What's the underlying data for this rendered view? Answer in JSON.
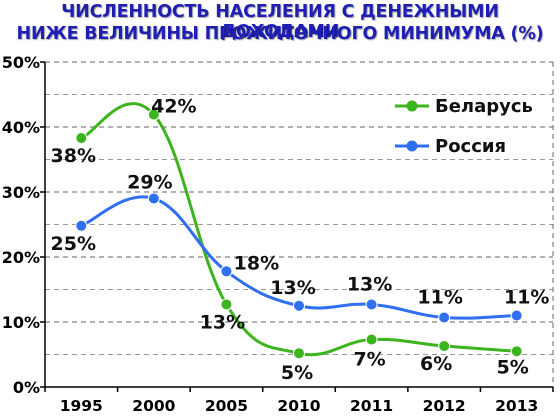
{
  "title": {
    "line1": "ЧИСЛЕННОСТЬ НАСЕЛЕНИЯ С ДЕНЕЖНЫМИ ДОХОДАМИ",
    "line2": "НИЖЕ ВЕЛИЧИНЫ ПРОЖИТОЧНОГО МИНИМУМА (%)"
  },
  "colors": {
    "title": "#1f1fb3",
    "belarus": "#3cb41e",
    "russia": "#2f6ff0",
    "grid": "#555555"
  },
  "chart_data": {
    "type": "line",
    "title": "ЧИСЛЕННОСТЬ НАСЕЛЕНИЯ С ДЕНЕЖНЫМИ ДОХОДАМИ НИЖЕ ВЕЛИЧИНЫ ПРОЖИТОЧНОГО МИНИМУМА (%)",
    "xlabel": "",
    "ylabel": "",
    "categories": [
      "1995",
      "2000",
      "2005",
      "2010",
      "2011",
      "2012",
      "2013"
    ],
    "ylim": [
      0,
      50
    ],
    "yticks": [
      "0%",
      "10%",
      "20%",
      "30%",
      "40%",
      "50%"
    ],
    "grid": "horizontal dashed",
    "legend_position": "top-right",
    "smooth": true,
    "series": [
      {
        "name": "Беларусь",
        "color": "#3cb41e",
        "values": [
          38.3,
          41.9,
          12.7,
          5.2,
          7.3,
          6.3,
          5.5
        ],
        "labels": [
          "38%",
          "42%",
          "13%",
          "5%",
          "7%",
          "6%",
          "5%"
        ]
      },
      {
        "name": "Россия",
        "color": "#2f6ff0",
        "values": [
          24.8,
          29.0,
          17.8,
          12.5,
          12.7,
          10.7,
          11.0
        ],
        "labels": [
          "25%",
          "29%",
          "18%",
          "13%",
          "13%",
          "11%",
          "11%"
        ]
      }
    ]
  }
}
